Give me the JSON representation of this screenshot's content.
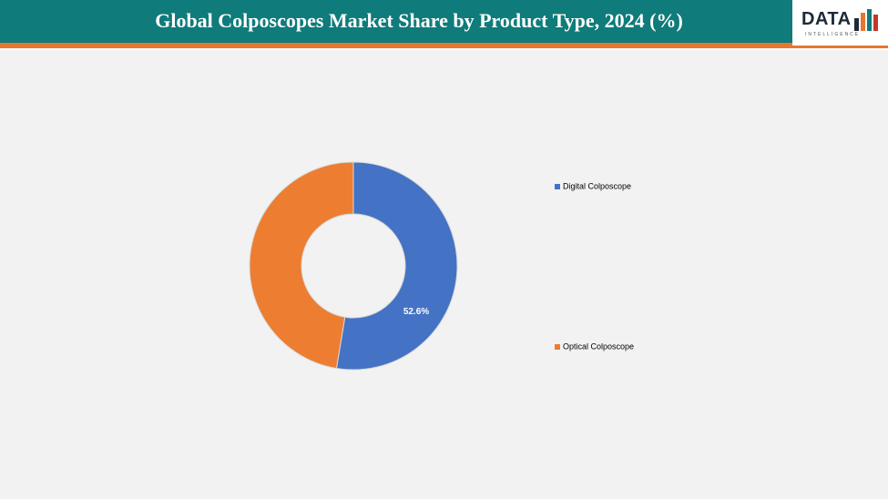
{
  "header": {
    "title": "Global Colposcopes Market Share by Product Type, 2024 (%)"
  },
  "logo": {
    "name": "DATA",
    "tagline": "INTELLIGENCE"
  },
  "chart_data": {
    "type": "donut",
    "categories": [
      "Digital Colposcope",
      "Optical Colposcope"
    ],
    "values": [
      52.6,
      47.4
    ],
    "value_labels": [
      "52.6%",
      null
    ],
    "colors": [
      "#4472c4",
      "#ed7d31"
    ],
    "legend": "right"
  }
}
